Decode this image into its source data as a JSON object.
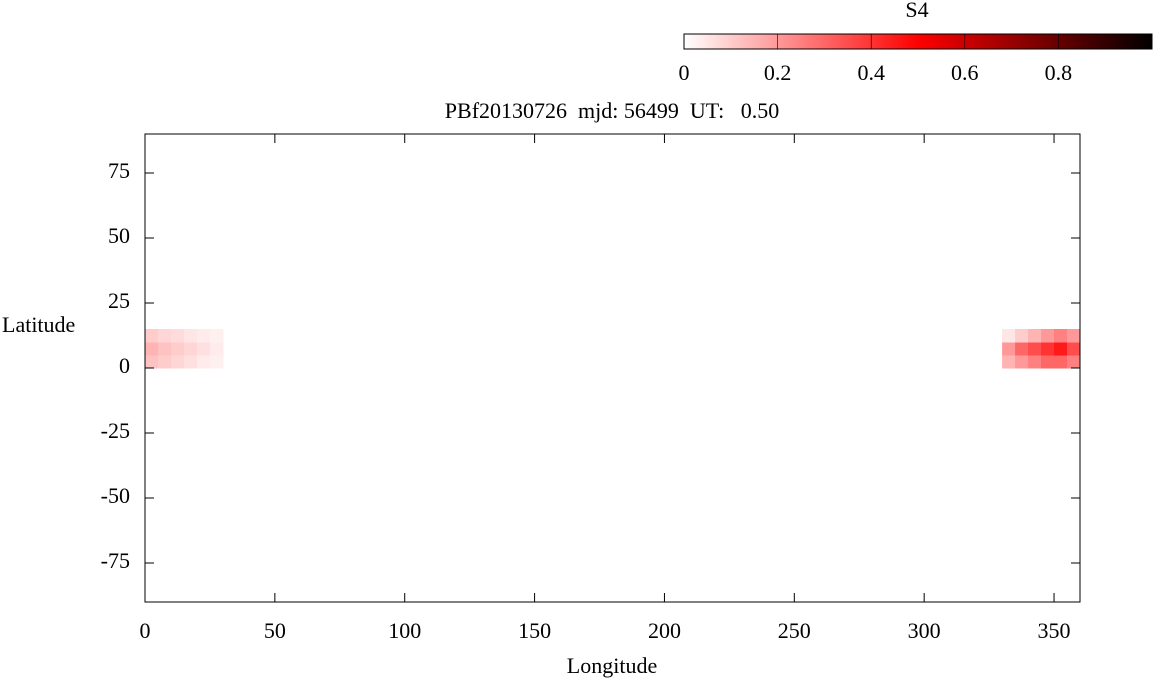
{
  "chart_data": {
    "type": "heatmap",
    "title": "PBf20130726  mjd: 56499  UT:   0.50",
    "xlabel": "Longitude",
    "ylabel": "Latitude",
    "xlim": [
      0,
      360
    ],
    "ylim": [
      -90,
      90
    ],
    "xticks": [
      0,
      50,
      100,
      150,
      200,
      250,
      300,
      350
    ],
    "yticks": [
      -75,
      -50,
      -25,
      0,
      25,
      50,
      75
    ],
    "colorbar": {
      "label": "S4",
      "lim": [
        0,
        1
      ],
      "ticks": [
        0,
        0.2,
        0.4,
        0.6,
        0.8
      ],
      "colormap": [
        "#ffffff",
        "#ff0000",
        "#000000"
      ]
    },
    "x": [
      2.5,
      7.5,
      12.5,
      17.5,
      22.5,
      27.5,
      2.5,
      7.5,
      12.5,
      17.5,
      22.5,
      27.5,
      2.5,
      7.5,
      12.5,
      17.5,
      22.5,
      27.5,
      332.5,
      337.5,
      342.5,
      347.5,
      352.5,
      357.5,
      332.5,
      337.5,
      342.5,
      347.5,
      352.5,
      357.5,
      332.5,
      337.5,
      342.5,
      347.5,
      352.5,
      357.5
    ],
    "y": [
      2.5,
      2.5,
      2.5,
      2.5,
      2.5,
      2.5,
      7.5,
      7.5,
      7.5,
      7.5,
      7.5,
      7.5,
      12.5,
      12.5,
      12.5,
      12.5,
      12.5,
      12.5,
      2.5,
      2.5,
      2.5,
      2.5,
      2.5,
      2.5,
      7.5,
      7.5,
      7.5,
      7.5,
      7.5,
      7.5,
      12.5,
      12.5,
      12.5,
      12.5,
      12.5,
      12.5
    ],
    "values": [
      0.12,
      0.1,
      0.08,
      0.06,
      0.04,
      0.03,
      0.15,
      0.12,
      0.1,
      0.08,
      0.06,
      0.04,
      0.1,
      0.08,
      0.07,
      0.05,
      0.04,
      0.03,
      0.15,
      0.2,
      0.25,
      0.3,
      0.3,
      0.25,
      0.2,
      0.3,
      0.35,
      0.4,
      0.45,
      0.35,
      0.05,
      0.1,
      0.15,
      0.2,
      0.25,
      0.2
    ]
  }
}
